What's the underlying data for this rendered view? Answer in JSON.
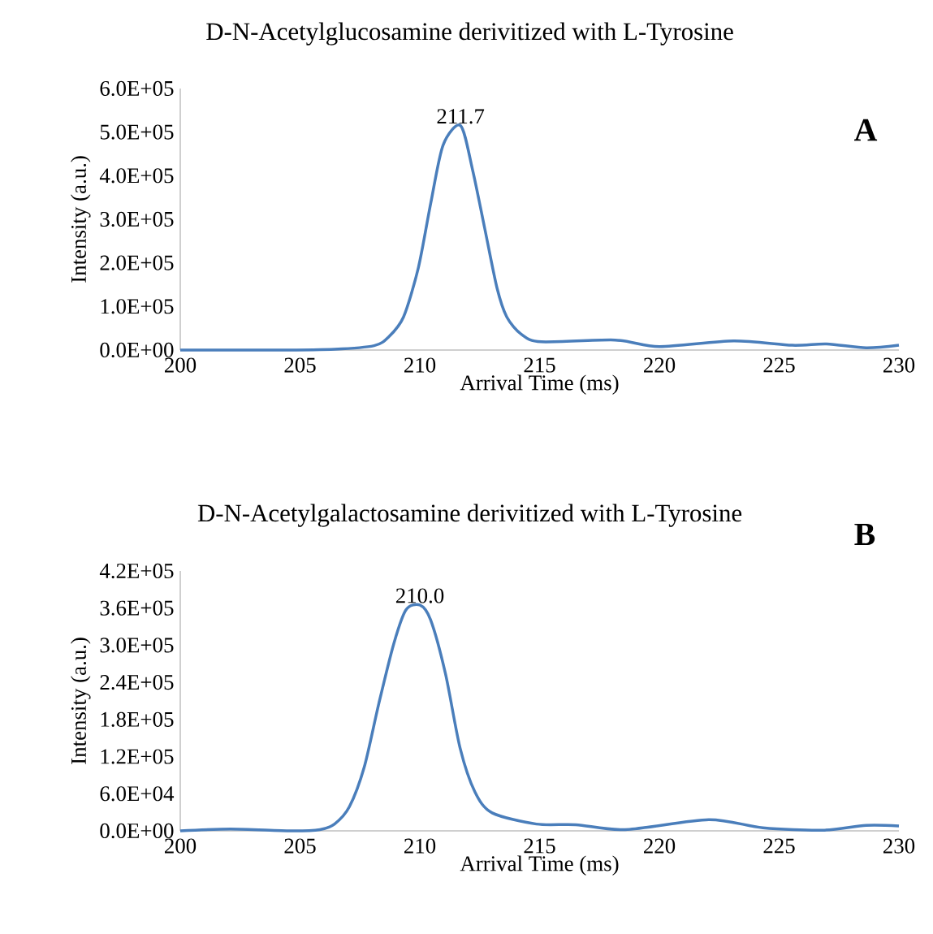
{
  "chart_data": [
    {
      "type": "line",
      "title": "D-N-Acetylglucosamine derivitized with L-Tyrosine",
      "xlabel": "Arrival Time (ms)",
      "ylabel": "Intensity (a.u.)",
      "color": "#4a7ebb",
      "x": [
        200,
        204,
        206.45,
        208.09,
        208.7,
        209.32,
        209.94,
        210.45,
        210.97,
        211.7,
        212.2,
        212.71,
        213.22,
        213.63,
        214.24,
        215.07,
        218.15,
        220.0,
        223.1,
        225.55,
        226.98,
        228.63,
        230
      ],
      "values": [
        0,
        0,
        2000,
        10000,
        30000,
        76000,
        189000,
        335000,
        470000,
        515000,
        414000,
        279000,
        143000,
        76000,
        36000,
        19000,
        23000,
        8000,
        21000,
        11000,
        14000,
        5000,
        11000
      ],
      "xlim": [
        200,
        230
      ],
      "xticks": [
        200,
        205,
        210,
        215,
        220,
        225,
        230
      ],
      "ylim": [
        0,
        600000
      ],
      "yticks": [
        {
          "value": 0,
          "label": "0.0E+00"
        },
        {
          "value": 100000,
          "label": "1.0E+05"
        },
        {
          "value": 200000,
          "label": "2.0E+05"
        },
        {
          "value": 300000,
          "label": "3.0E+05"
        },
        {
          "value": 400000,
          "label": "4.0E+05"
        },
        {
          "value": 500000,
          "label": "5.0E+05"
        },
        {
          "value": 600000,
          "label": "6.0E+05"
        }
      ],
      "annotations": [
        {
          "text": "211.7",
          "x": 211.7,
          "y": 515000
        },
        "A"
      ]
    },
    {
      "type": "line",
      "title": "D-N-Acetylgalactosamine derivitized with L-Tyrosine",
      "xlabel": "Arrival Time (ms)",
      "ylabel": "Intensity (a.u.)",
      "color": "#4a7ebb",
      "x": [
        200,
        202.1,
        204.6,
        205.83,
        206.44,
        207.06,
        207.68,
        208.29,
        208.91,
        209.42,
        210.0,
        210.45,
        211.07,
        211.68,
        212.3,
        213.02,
        214.87,
        216.51,
        218.57,
        222.06,
        224.32,
        226.8,
        228.63,
        230
      ],
      "values": [
        0,
        3000,
        0,
        2000,
        11000,
        39000,
        103000,
        206000,
        302000,
        357000,
        365000,
        341000,
        254000,
        134000,
        63000,
        29000,
        11000,
        10000,
        2000,
        18000,
        5000,
        1000,
        9000,
        8000
      ],
      "xlim": [
        200,
        230
      ],
      "xticks": [
        200,
        205,
        210,
        215,
        220,
        225,
        230
      ],
      "ylim": [
        0,
        420000
      ],
      "yticks": [
        {
          "value": 0,
          "label": "0.0E+00"
        },
        {
          "value": 60000,
          "label": "6.0E+04"
        },
        {
          "value": 120000,
          "label": "1.2E+05"
        },
        {
          "value": 180000,
          "label": "1.8E+05"
        },
        {
          "value": 240000,
          "label": "2.4E+05"
        },
        {
          "value": 300000,
          "label": "3.0E+05"
        },
        {
          "value": 360000,
          "label": "3.6E+05"
        },
        {
          "value": 420000,
          "label": "4.2E+05"
        }
      ],
      "annotations": [
        {
          "text": "210.0",
          "x": 210.0,
          "y": 365000
        },
        "B"
      ]
    }
  ]
}
